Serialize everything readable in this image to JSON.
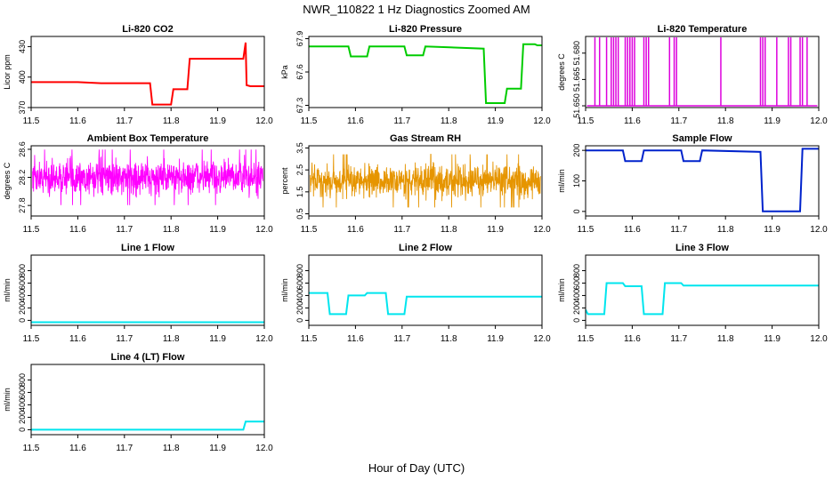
{
  "figure": {
    "title": "NWR_110822  1 Hz Diagnostics Zoomed AM",
    "xlabel": "Hour of Day (UTC)"
  },
  "chart_data": [
    {
      "id": "co2",
      "type": "line",
      "title": "Li-820 CO2",
      "ylabel": "Licor ppm",
      "color": "#ff0000",
      "style": "step",
      "xlim": [
        11.5,
        12.0
      ],
      "ylim": [
        370,
        440
      ],
      "xticks": [
        11.5,
        11.6,
        11.7,
        11.8,
        11.9,
        12.0
      ],
      "xtick_labels": [
        "11.5",
        "11.6",
        "11.7",
        "11.8",
        "11.9",
        "12.0"
      ],
      "yticks": [
        370,
        400,
        430
      ],
      "ytick_labels": [
        "370",
        "400",
        "430"
      ],
      "x": [
        11.5,
        11.6,
        11.65,
        11.755,
        11.76,
        11.8,
        11.805,
        11.835,
        11.84,
        11.955,
        11.96,
        11.962,
        11.97,
        12.0
      ],
      "y": [
        395,
        395,
        394,
        394,
        373,
        373,
        388,
        388,
        418,
        418,
        434,
        392,
        391,
        391
      ]
    },
    {
      "id": "pressure",
      "type": "line",
      "title": "Li-820 Pressure",
      "ylabel": "kPa",
      "color": "#00cc00",
      "style": "step",
      "xlim": [
        11.5,
        12.0
      ],
      "ylim": [
        67.28,
        67.92
      ],
      "xticks": [
        11.5,
        11.6,
        11.7,
        11.8,
        11.9,
        12.0
      ],
      "xtick_labels": [
        "11.5",
        "11.6",
        "11.7",
        "11.8",
        "11.9",
        "12.0"
      ],
      "yticks": [
        67.3,
        67.6,
        67.9
      ],
      "ytick_labels": [
        "67.3",
        "67.6",
        "67.9"
      ],
      "x": [
        11.5,
        11.585,
        11.59,
        11.625,
        11.63,
        11.705,
        11.71,
        11.745,
        11.75,
        11.875,
        11.88,
        11.92,
        11.925,
        11.955,
        11.96,
        11.985,
        11.99,
        12.0
      ],
      "y": [
        67.83,
        67.83,
        67.74,
        67.74,
        67.83,
        67.83,
        67.75,
        67.75,
        67.83,
        67.81,
        67.32,
        67.32,
        67.45,
        67.45,
        67.85,
        67.85,
        67.84,
        67.84
      ]
    },
    {
      "id": "licor_temp",
      "type": "line",
      "title": "Li-820 Temperature",
      "ylabel": "degrees C",
      "color": "#dd00dd",
      "style": "spikes",
      "xlim": [
        11.5,
        12.0
      ],
      "ylim": [
        51.649,
        51.6895
      ],
      "xticks": [
        11.5,
        11.6,
        11.7,
        11.8,
        11.9,
        12.0
      ],
      "xtick_labels": [
        "11.5",
        "11.6",
        "11.7",
        "11.8",
        "11.9",
        "12.0"
      ],
      "yticks": [
        51.65,
        51.665,
        51.68
      ],
      "ytick_labels": [
        "51.650",
        "51.665",
        "51.680"
      ],
      "baseline": 51.65,
      "peak": 51.689,
      "spike_x": [
        11.52,
        11.53,
        11.545,
        11.555,
        11.56,
        11.565,
        11.57,
        11.585,
        11.59,
        11.595,
        11.6,
        11.605,
        11.625,
        11.63,
        11.635,
        11.68,
        11.69,
        11.695,
        11.79,
        11.875,
        11.88,
        11.885,
        11.91,
        11.935,
        11.94,
        11.96,
        11.965,
        11.975
      ]
    },
    {
      "id": "ambient",
      "type": "line",
      "title": "Ambient Box Temperature",
      "ylabel": "degrees C",
      "color": "#ff00ff",
      "style": "noise",
      "xlim": [
        11.5,
        12.0
      ],
      "ylim": [
        27.65,
        28.65
      ],
      "xticks": [
        11.5,
        11.6,
        11.7,
        11.8,
        11.9,
        12.0
      ],
      "xtick_labels": [
        "11.5",
        "11.6",
        "11.7",
        "11.8",
        "11.9",
        "12.0"
      ],
      "yticks": [
        27.8,
        28.2,
        28.6
      ],
      "ytick_labels": [
        "27.8",
        "28.2",
        "28.6"
      ],
      "mean": 28.2,
      "spread": 0.18,
      "min": 27.75,
      "max": 28.62,
      "n": 900
    },
    {
      "id": "rh",
      "type": "line",
      "title": "Gas Stream RH",
      "ylabel": "percent",
      "color": "#e69500",
      "style": "noise",
      "xlim": [
        11.5,
        12.0
      ],
      "ylim": [
        0.4,
        3.6
      ],
      "xticks": [
        11.5,
        11.6,
        11.7,
        11.8,
        11.9,
        12.0
      ],
      "xtick_labels": [
        "11.5",
        "11.6",
        "11.7",
        "11.8",
        "11.9",
        "12.0"
      ],
      "yticks": [
        0.5,
        1.5,
        2.5,
        3.5
      ],
      "ytick_labels": [
        "0.5",
        "1.5",
        "2.5",
        "3.5"
      ],
      "mean": 2.0,
      "spread": 0.55,
      "min": 0.6,
      "max": 3.4,
      "n": 900
    },
    {
      "id": "sample_flow",
      "type": "line",
      "title": "Sample Flow",
      "ylabel": "ml/min",
      "color": "#0022cc",
      "style": "step",
      "xlim": [
        11.5,
        12.0
      ],
      "ylim": [
        -15,
        215
      ],
      "xticks": [
        11.5,
        11.6,
        11.7,
        11.8,
        11.9,
        12.0
      ],
      "xtick_labels": [
        "11.5",
        "11.6",
        "11.7",
        "11.8",
        "11.9",
        "12.0"
      ],
      "yticks": [
        0,
        100,
        200
      ],
      "ytick_labels": [
        "0",
        "100",
        "200"
      ],
      "x": [
        11.5,
        11.58,
        11.585,
        11.62,
        11.625,
        11.705,
        11.71,
        11.745,
        11.75,
        11.875,
        11.88,
        11.96,
        11.965,
        12.0
      ],
      "y": [
        200,
        200,
        165,
        165,
        200,
        200,
        165,
        165,
        200,
        195,
        0,
        0,
        205,
        205
      ]
    },
    {
      "id": "line1",
      "type": "line",
      "title": "Line 1 Flow",
      "ylabel": "ml/min",
      "color": "#00e5ee",
      "style": "step",
      "xlim": [
        11.5,
        12.0
      ],
      "ylim": [
        -80,
        1050
      ],
      "xticks": [
        11.5,
        11.6,
        11.7,
        11.8,
        11.9,
        12.0
      ],
      "xtick_labels": [
        "11.5",
        "11.6",
        "11.7",
        "11.8",
        "11.9",
        "12.0"
      ],
      "yticks": [
        0,
        200,
        400,
        600,
        800
      ],
      "ytick_labels": [
        "0",
        "200",
        "400",
        "600",
        "800"
      ],
      "x": [
        11.5,
        12.0
      ],
      "y": [
        -30,
        -30
      ]
    },
    {
      "id": "line2",
      "type": "line",
      "title": "Line 2 Flow",
      "ylabel": "ml/min",
      "color": "#00e5ee",
      "style": "step",
      "xlim": [
        11.5,
        12.0
      ],
      "ylim": [
        -80,
        1050
      ],
      "xticks": [
        11.5,
        11.6,
        11.7,
        11.8,
        11.9,
        12.0
      ],
      "xtick_labels": [
        "11.5",
        "11.6",
        "11.7",
        "11.8",
        "11.9",
        "12.0"
      ],
      "yticks": [
        0,
        200,
        400,
        600,
        800
      ],
      "ytick_labels": [
        "0",
        "200",
        "400",
        "600",
        "800"
      ],
      "x": [
        11.5,
        11.54,
        11.545,
        11.58,
        11.585,
        11.62,
        11.625,
        11.665,
        11.67,
        11.705,
        11.71,
        12.0
      ],
      "y": [
        440,
        440,
        100,
        100,
        400,
        400,
        440,
        440,
        100,
        100,
        380,
        380
      ]
    },
    {
      "id": "line3",
      "type": "line",
      "title": "Line 3 Flow",
      "ylabel": "ml/min",
      "color": "#00e5ee",
      "style": "step",
      "xlim": [
        11.5,
        12.0
      ],
      "ylim": [
        -80,
        1050
      ],
      "xticks": [
        11.5,
        11.6,
        11.7,
        11.8,
        11.9,
        12.0
      ],
      "xtick_labels": [
        "11.5",
        "11.6",
        "11.7",
        "11.8",
        "11.9",
        "12.0"
      ],
      "yticks": [
        0,
        200,
        400,
        600,
        800
      ],
      "ytick_labels": [
        "0",
        "200",
        "400",
        "600",
        "800"
      ],
      "x": [
        11.5,
        11.505,
        11.54,
        11.545,
        11.58,
        11.585,
        11.62,
        11.625,
        11.665,
        11.67,
        11.705,
        11.71,
        12.0
      ],
      "y": [
        170,
        100,
        100,
        600,
        600,
        550,
        550,
        100,
        100,
        600,
        600,
        560,
        560
      ]
    },
    {
      "id": "line4",
      "type": "line",
      "title": "Line 4 (LT) Flow",
      "ylabel": "ml/min",
      "color": "#00e5ee",
      "style": "step",
      "xlim": [
        11.5,
        12.0
      ],
      "ylim": [
        -80,
        1050
      ],
      "xticks": [
        11.5,
        11.6,
        11.7,
        11.8,
        11.9,
        12.0
      ],
      "xtick_labels": [
        "11.5",
        "11.6",
        "11.7",
        "11.8",
        "11.9",
        "12.0"
      ],
      "yticks": [
        0,
        200,
        400,
        600,
        800
      ],
      "ytick_labels": [
        "0",
        "200",
        "400",
        "600",
        "800"
      ],
      "x": [
        11.5,
        11.955,
        11.96,
        12.0
      ],
      "y": [
        0,
        0,
        130,
        130
      ]
    }
  ]
}
